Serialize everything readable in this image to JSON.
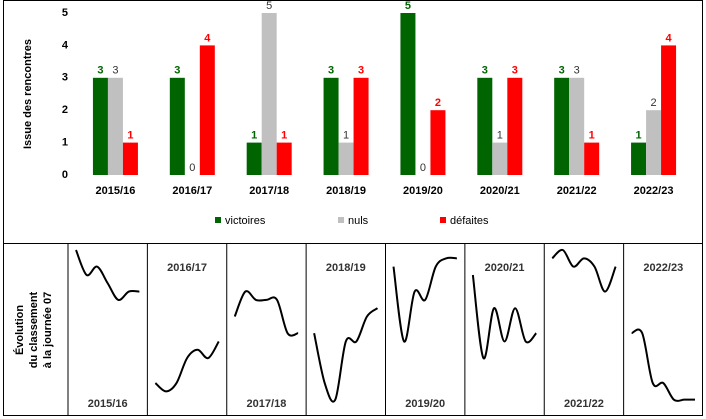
{
  "chart_data": [
    {
      "type": "bar",
      "ylabel": "Issue des rencontres",
      "categories": [
        "2015/16",
        "2016/17",
        "2017/18",
        "2018/19",
        "2019/20",
        "2020/21",
        "2021/22",
        "2022/23"
      ],
      "series": [
        {
          "name": "victoires",
          "color": "#006400",
          "values": [
            3,
            3,
            1,
            3,
            5,
            3,
            3,
            1
          ]
        },
        {
          "name": "nuls",
          "color": "#c0c0c0",
          "values": [
            3,
            0,
            5,
            1,
            0,
            1,
            3,
            2
          ]
        },
        {
          "name": "défaites",
          "color": "#ff0000",
          "values": [
            1,
            4,
            1,
            3,
            2,
            3,
            1,
            4
          ]
        }
      ],
      "ylim": [
        0,
        5
      ],
      "yticks": [
        0,
        1,
        2,
        3,
        4,
        5
      ],
      "legend": "bottom"
    },
    {
      "type": "line",
      "ylabel": [
        "Évolution",
        "du classement",
        "à la journée 07"
      ],
      "ylim": [
        20,
        1
      ],
      "color": "#000000",
      "series": [
        {
          "name": "2015/16",
          "values": [
            1,
            4,
            3,
            5,
            7,
            6,
            6
          ]
        },
        {
          "name": "2016/17",
          "values": [
            17,
            18,
            17,
            14,
            13,
            14,
            12
          ]
        },
        {
          "name": "2017/18",
          "values": [
            9,
            6,
            7,
            7,
            7,
            11,
            11
          ]
        },
        {
          "name": "2018/19",
          "values": [
            11,
            17,
            19,
            12,
            12,
            9,
            8
          ]
        },
        {
          "name": "2019/20",
          "values": [
            3,
            12,
            6,
            7,
            3,
            2,
            2
          ]
        },
        {
          "name": "2020/21",
          "values": [
            4,
            14,
            8,
            12,
            8,
            12,
            11
          ]
        },
        {
          "name": "2021/22",
          "values": [
            2,
            1,
            3,
            2,
            3,
            6,
            3
          ]
        },
        {
          "name": "2022/23",
          "values": [
            11,
            11,
            17,
            17,
            19,
            19,
            19
          ]
        }
      ]
    }
  ]
}
